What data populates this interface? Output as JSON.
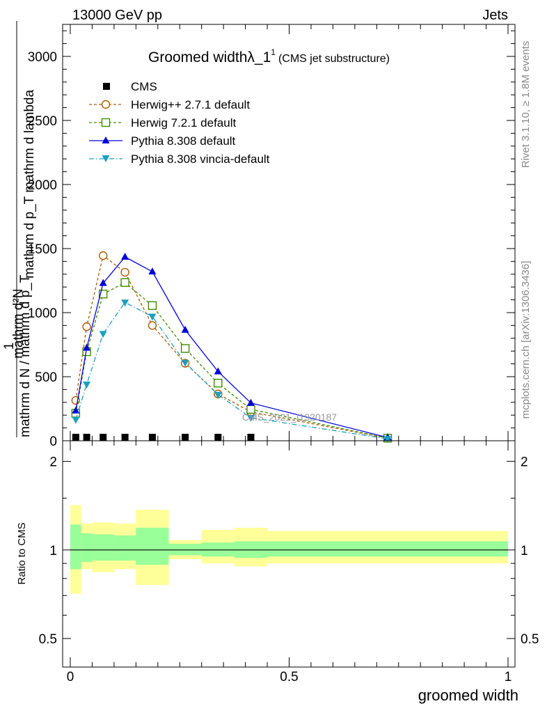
{
  "header": {
    "left_label": "13000 GeV pp",
    "right_label": "Jets"
  },
  "side_labels": {
    "rivet": "Rivet 3.1.10, ≥ 1.8M events",
    "mcplots": "mcplots.cern.ch [arXiv:1306.3436]"
  },
  "watermark": "CMS_2021_I1920187",
  "chart_data": [
    {
      "type": "line",
      "title_main": "Groomed widthλ_1",
      "title_sup": "1",
      "title_sub": "(CMS jet substructure)",
      "ylabel_upper": "mathrm d²N",
      "ylabel_upper2": "mathrm d p_T mathrm d lambda",
      "ylabel_lower": "1",
      "ylabel_lower2": "mathrm d N / mathrm d p_T",
      "xlim": [
        0,
        1
      ],
      "ylim": [
        0,
        3250
      ],
      "y_ticks": [
        0,
        500,
        1000,
        1500,
        2000,
        2500,
        3000
      ],
      "y_tick_labels": [
        "0",
        "500",
        "1000",
        "1500",
        "2000",
        "2500",
        "3000"
      ],
      "colors": {
        "cms": "#000000",
        "herwigpp": "#b15a00",
        "herwig7": "#3c8c00",
        "pythia": "#0000dd",
        "vincia": "#1aa0c0"
      },
      "legend": [
        {
          "key": "cms",
          "label": "CMS"
        },
        {
          "key": "herwigpp",
          "label": "Herwig++ 2.7.1 default"
        },
        {
          "key": "herwig7",
          "label": "Herwig 7.2.1 default"
        },
        {
          "key": "pythia",
          "label": "Pythia 8.308 default"
        },
        {
          "key": "vincia",
          "label": "Pythia 8.308 vincia-default"
        }
      ],
      "cms_points": {
        "x": [
          0.0125,
          0.0375,
          0.075,
          0.125,
          0.1875,
          0.2625,
          0.3375,
          0.4125
        ],
        "y": [
          5,
          5,
          5,
          5,
          5,
          5,
          5,
          5
        ]
      },
      "series": [
        {
          "key": "herwigpp",
          "name": "Herwig++ 2.7.1 default",
          "x": [
            0.0125,
            0.0375,
            0.075,
            0.125,
            0.1875,
            0.2625,
            0.3375,
            0.4125,
            0.725
          ],
          "values": [
            315,
            890,
            1445,
            1315,
            900,
            605,
            365,
            225,
            20
          ]
        },
        {
          "key": "herwig7",
          "name": "Herwig 7.2.1 default",
          "x": [
            0.0125,
            0.0375,
            0.075,
            0.125,
            0.1875,
            0.2625,
            0.3375,
            0.4125,
            0.725
          ],
          "values": [
            215,
            695,
            1145,
            1235,
            1055,
            720,
            450,
            245,
            20
          ]
        },
        {
          "key": "pythia",
          "name": "Pythia 8.308 default",
          "x": [
            0.0125,
            0.0375,
            0.075,
            0.125,
            0.1875,
            0.2625,
            0.3375,
            0.4125,
            0.725
          ],
          "values": [
            235,
            725,
            1230,
            1435,
            1320,
            865,
            540,
            295,
            25
          ]
        },
        {
          "key": "vincia",
          "name": "Pythia 8.308 vincia-default",
          "x": [
            0.0125,
            0.0375,
            0.075,
            0.125,
            0.1875,
            0.2625,
            0.3375,
            0.4125,
            0.725
          ],
          "values": [
            165,
            440,
            835,
            1080,
            970,
            610,
            360,
            180,
            15
          ]
        }
      ]
    },
    {
      "type": "area",
      "ylabel": "Ratio to CMS",
      "xlabel": "groomed width",
      "xlim": [
        0,
        1
      ],
      "ylim": [
        0.4,
        2.35
      ],
      "y_ticks": [
        0.5,
        1,
        2
      ],
      "y_tick_labels": [
        "0.5",
        "1",
        "2"
      ],
      "x_ticks": [
        0,
        0.5,
        1
      ],
      "x_tick_labels": [
        "0",
        "0.5",
        "1"
      ],
      "colors": {
        "outer_band": "#ffff99",
        "inner_band": "#99ff99",
        "ref_line": "#000000"
      },
      "bins": [
        {
          "lo": 0.0,
          "hi": 0.025,
          "inner": [
            0.86,
            1.22
          ],
          "outer": [
            0.71,
            1.42
          ]
        },
        {
          "lo": 0.025,
          "hi": 0.05,
          "inner": [
            0.91,
            1.14
          ],
          "outer": [
            0.86,
            1.23
          ]
        },
        {
          "lo": 0.05,
          "hi": 0.1,
          "inner": [
            0.92,
            1.13
          ],
          "outer": [
            0.84,
            1.24
          ]
        },
        {
          "lo": 0.1,
          "hi": 0.15,
          "inner": [
            0.92,
            1.12
          ],
          "outer": [
            0.86,
            1.23
          ]
        },
        {
          "lo": 0.15,
          "hi": 0.225,
          "inner": [
            0.89,
            1.19
          ],
          "outer": [
            0.76,
            1.37
          ]
        },
        {
          "lo": 0.225,
          "hi": 0.3,
          "inner": [
            0.96,
            1.05
          ],
          "outer": [
            0.93,
            1.08
          ]
        },
        {
          "lo": 0.3,
          "hi": 0.375,
          "inner": [
            0.95,
            1.06
          ],
          "outer": [
            0.9,
            1.17
          ]
        },
        {
          "lo": 0.375,
          "hi": 0.45,
          "inner": [
            0.94,
            1.07
          ],
          "outer": [
            0.88,
            1.19
          ]
        },
        {
          "lo": 0.45,
          "hi": 1.0,
          "inner": [
            0.95,
            1.07
          ],
          "outer": [
            0.9,
            1.16
          ]
        }
      ]
    }
  ]
}
